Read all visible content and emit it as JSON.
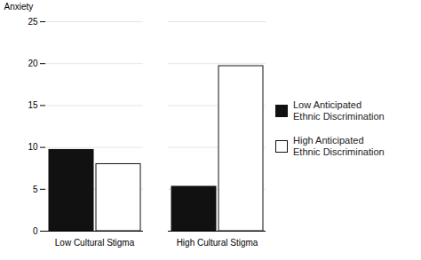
{
  "chart_data": {
    "type": "bar",
    "categories": [
      "Low Cultural Stigma",
      "High Cultural Stigma"
    ],
    "series": [
      {
        "name": "Low Anticipated\nEthnic Discrimination",
        "color": "#111111",
        "values": [
          9.7,
          5.3
        ]
      },
      {
        "name": "High Anticipated\nEthnic Discrimination",
        "color": "#ffffff",
        "values": [
          8.0,
          19.7
        ]
      }
    ],
    "ylabel": "Anxiety",
    "ylim": [
      0,
      25
    ],
    "yticks": [
      0,
      5,
      10,
      15,
      20,
      25
    ],
    "grid": true,
    "legend": "right"
  }
}
